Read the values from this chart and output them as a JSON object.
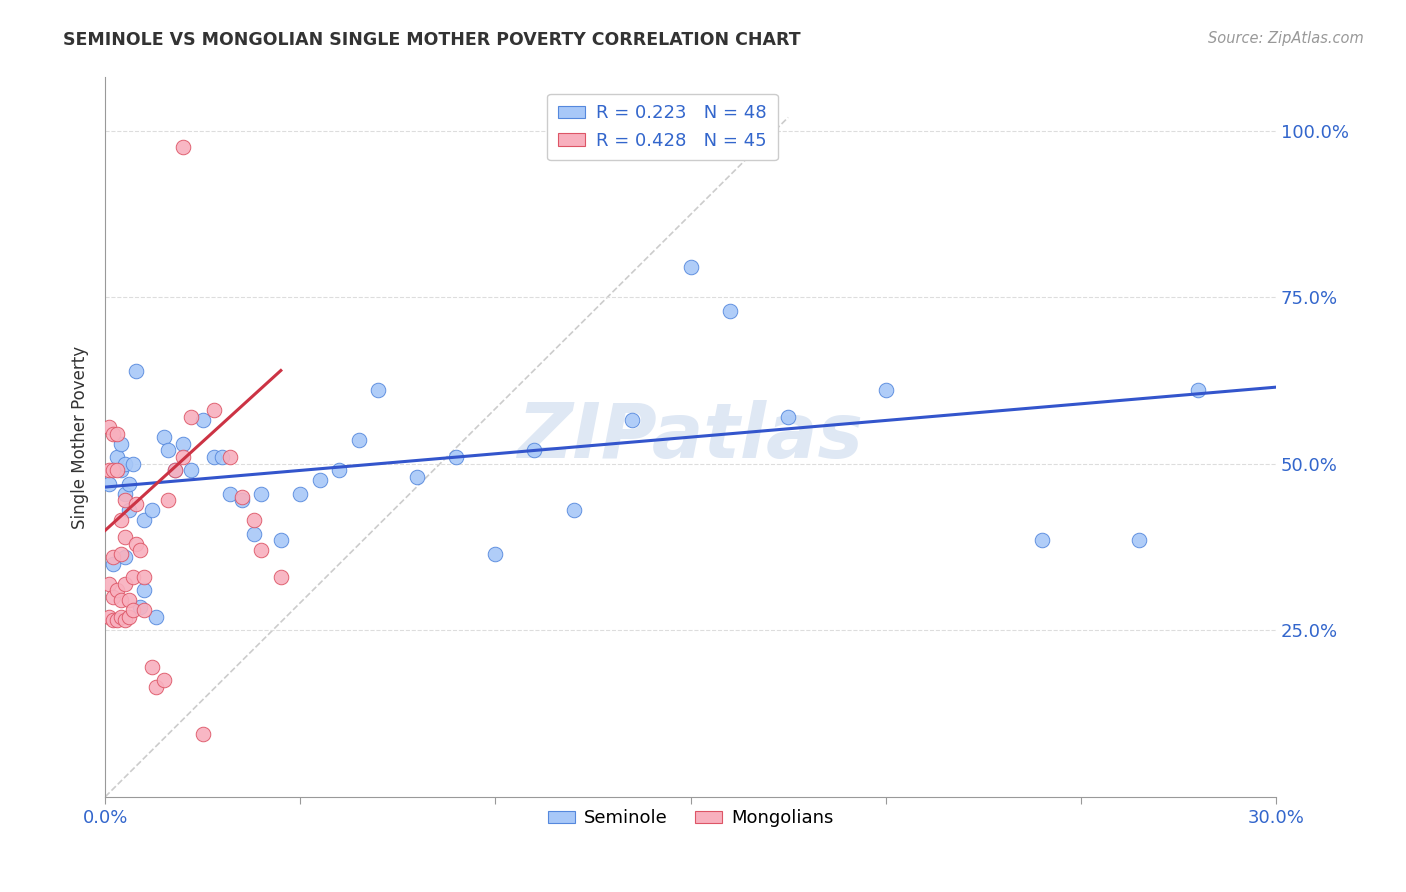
{
  "title": "SEMINOLE VS MONGOLIAN SINGLE MOTHER POVERTY CORRELATION CHART",
  "source": "Source: ZipAtlas.com",
  "ylabel": "Single Mother Poverty",
  "xlim": [
    0.0,
    0.3
  ],
  "ylim": [
    0.0,
    1.08
  ],
  "ytick_vals": [
    0.25,
    0.5,
    0.75,
    1.0
  ],
  "ytick_labels": [
    "25.0%",
    "50.0%",
    "75.0%",
    "100.0%"
  ],
  "xtick_labels": [
    "0.0%",
    "",
    "",
    "",
    "",
    "",
    "30.0%"
  ],
  "watermark": "ZIPatlas",
  "seminole_color": "#a8c8f8",
  "mongolian_color": "#f8b0be",
  "seminole_edge_color": "#5588dd",
  "mongolian_edge_color": "#dd5566",
  "seminole_line_color": "#3355cc",
  "mongolian_line_color": "#cc3344",
  "diagonal_color": "#cccccc",
  "grid_color": "#dddddd",
  "axis_color": "#999999",
  "text_color": "#333333",
  "tick_label_color": "#3366cc",
  "source_color": "#999999",
  "legend_r1": "R = 0.223   N = 48",
  "legend_r2": "R = 0.428   N = 45",
  "seminole_x": [
    0.001,
    0.002,
    0.003,
    0.004,
    0.004,
    0.005,
    0.005,
    0.005,
    0.006,
    0.006,
    0.007,
    0.008,
    0.009,
    0.01,
    0.01,
    0.012,
    0.013,
    0.015,
    0.016,
    0.018,
    0.02,
    0.022,
    0.025,
    0.028,
    0.03,
    0.032,
    0.035,
    0.038,
    0.04,
    0.045,
    0.05,
    0.055,
    0.06,
    0.065,
    0.07,
    0.08,
    0.09,
    0.1,
    0.11,
    0.12,
    0.135,
    0.15,
    0.16,
    0.175,
    0.2,
    0.24,
    0.265,
    0.28
  ],
  "seminole_y": [
    0.47,
    0.35,
    0.51,
    0.49,
    0.53,
    0.5,
    0.455,
    0.36,
    0.47,
    0.43,
    0.5,
    0.64,
    0.285,
    0.415,
    0.31,
    0.43,
    0.27,
    0.54,
    0.52,
    0.49,
    0.53,
    0.49,
    0.565,
    0.51,
    0.51,
    0.455,
    0.445,
    0.395,
    0.455,
    0.385,
    0.455,
    0.475,
    0.49,
    0.535,
    0.61,
    0.48,
    0.51,
    0.365,
    0.52,
    0.43,
    0.565,
    0.795,
    0.73,
    0.57,
    0.61,
    0.385,
    0.385,
    0.61
  ],
  "mongolian_x": [
    0.001,
    0.001,
    0.001,
    0.001,
    0.002,
    0.002,
    0.002,
    0.002,
    0.002,
    0.003,
    0.003,
    0.003,
    0.003,
    0.004,
    0.004,
    0.004,
    0.004,
    0.005,
    0.005,
    0.005,
    0.005,
    0.006,
    0.006,
    0.007,
    0.007,
    0.008,
    0.008,
    0.009,
    0.01,
    0.01,
    0.012,
    0.013,
    0.015,
    0.016,
    0.018,
    0.02,
    0.022,
    0.025,
    0.028,
    0.032,
    0.035,
    0.038,
    0.04,
    0.045,
    0.02
  ],
  "mongolian_y": [
    0.555,
    0.49,
    0.32,
    0.27,
    0.545,
    0.49,
    0.36,
    0.3,
    0.265,
    0.545,
    0.49,
    0.31,
    0.265,
    0.415,
    0.365,
    0.295,
    0.27,
    0.445,
    0.39,
    0.32,
    0.265,
    0.295,
    0.27,
    0.33,
    0.28,
    0.44,
    0.38,
    0.37,
    0.33,
    0.28,
    0.195,
    0.165,
    0.175,
    0.445,
    0.49,
    0.51,
    0.57,
    0.095,
    0.58,
    0.51,
    0.45,
    0.415,
    0.37,
    0.33,
    0.975
  ],
  "sem_trend_x": [
    0.0,
    0.3
  ],
  "sem_trend_y": [
    0.465,
    0.615
  ],
  "mon_trend_x": [
    0.0,
    0.045
  ],
  "mon_trend_y": [
    0.4,
    0.64
  ]
}
